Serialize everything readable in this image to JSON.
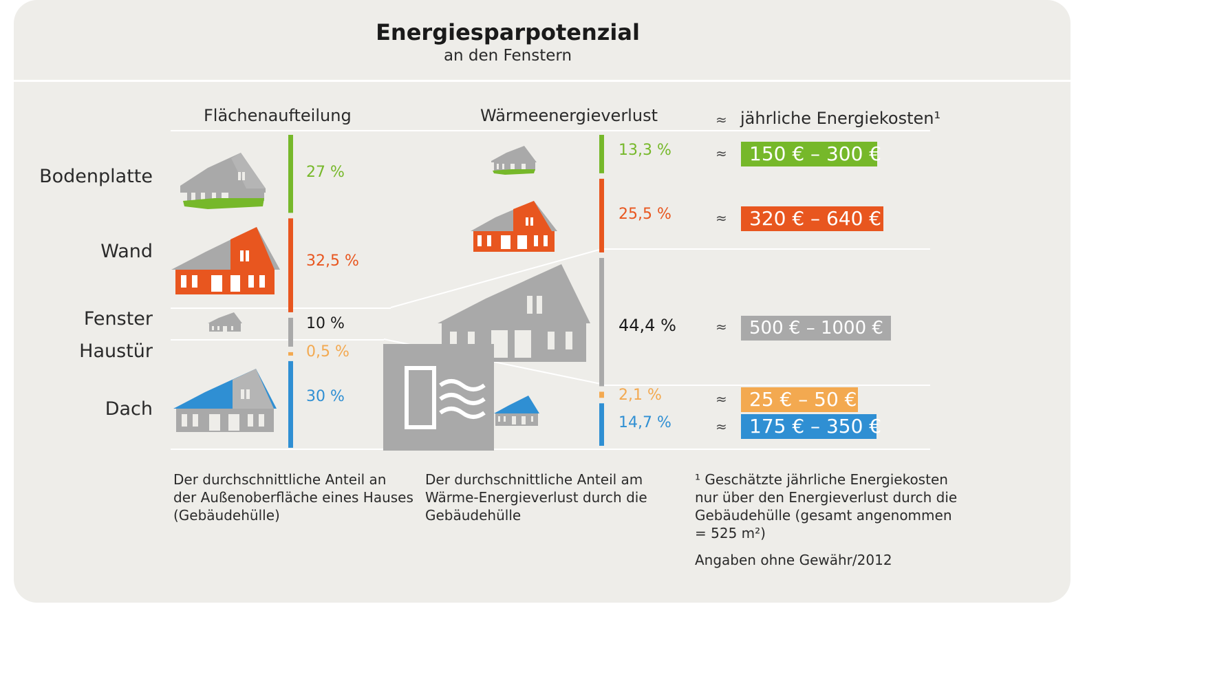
{
  "header": {
    "title": "Energiesparpotenzial",
    "subtitle": "an den Fenstern"
  },
  "columns": {
    "area_heading": "Flächenaufteilung",
    "loss_heading": "Wärmeenergieverlust",
    "approx_symbol": "≈",
    "cost_heading": "jährliche Energiekosten¹"
  },
  "notes": {
    "area_line1": "Der durchschnittliche Anteil an",
    "area_line2": "der Außenoberfläche eines Hauses",
    "area_line3": "(Gebäudehülle)",
    "loss_line1": "Der durchschnittliche Anteil am",
    "loss_line2": "Wärme-Energieverlust durch die",
    "loss_line3": "Gebäudehülle",
    "cost_line1": "¹ Geschätzte jährliche Energiekosten",
    "cost_line2": "nur über den Energieverlust durch die",
    "cost_line3": "Gebäudehülle (gesamt angenommen",
    "cost_line4": "= 525 m²)",
    "disclaimer": "Angaben ohne Gewähr/2012"
  },
  "colors": {
    "bodenplatte": "#76b82a",
    "wand": "#e8561f",
    "fenster": "#a9a9a9",
    "haustuer": "#f3a950",
    "dach": "#2f8fd3"
  },
  "chart_data": {
    "type": "bar",
    "categories": [
      "Bodenplatte",
      "Wand",
      "Fenster",
      "Haustür",
      "Dach"
    ],
    "series": [
      {
        "name": "Flächenaufteilung",
        "values": [
          27,
          32.5,
          10,
          0.5,
          30
        ],
        "labels": [
          "27 %",
          "32,5 %",
          "10 %",
          "0,5 %",
          "30 %"
        ]
      },
      {
        "name": "Wärmeenergieverlust",
        "values": [
          13.3,
          25.5,
          44.4,
          2.1,
          14.7
        ],
        "labels": [
          "13,3 %",
          "25,5 %",
          "44,4 %",
          "2,1 %",
          "14,7 %"
        ]
      }
    ],
    "annual_costs": [
      "150 € – 300 €",
      "320 € – 640 €",
      "500 € – 1000 €",
      "25 € – 50 €",
      "175 € – 350 €"
    ],
    "unit": "%"
  }
}
